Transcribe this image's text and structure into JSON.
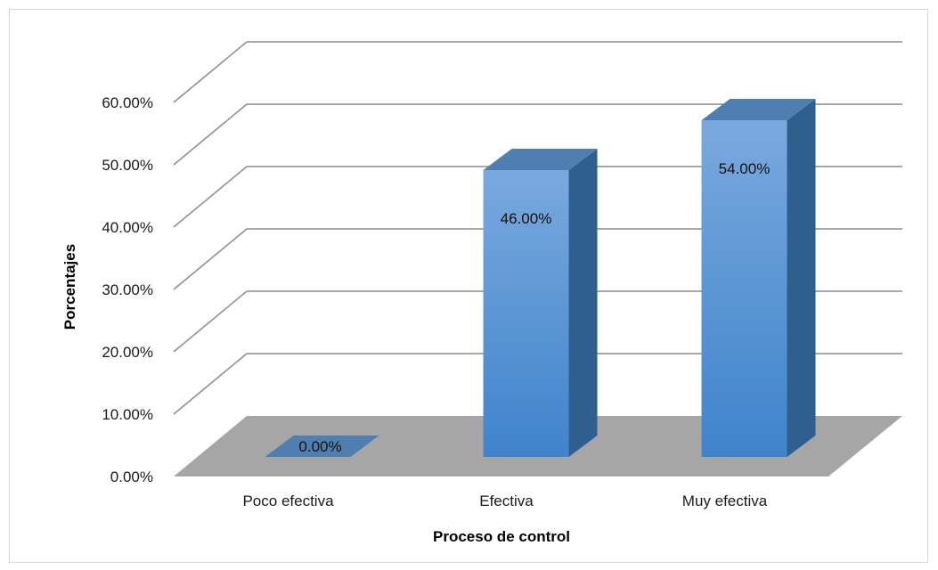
{
  "chart_data": {
    "type": "bar",
    "title": "",
    "xlabel": "Proceso de control",
    "ylabel": "Porcentajes",
    "categories": [
      "Poco efectiva",
      "Efectiva",
      "Muy efectiva"
    ],
    "values": [
      0.0,
      46.0,
      54.0
    ],
    "data_labels": [
      "0.00%",
      "46.00%",
      "54.00%"
    ],
    "ylim": [
      0,
      60
    ],
    "yticks": [
      0,
      10,
      20,
      30,
      40,
      50,
      60
    ],
    "ytick_labels": [
      "0.00%",
      "10.00%",
      "20.00%",
      "30.00%",
      "40.00%",
      "50.00%",
      "60.00%"
    ],
    "style": "3d-column",
    "grid": true,
    "legend": "none",
    "colors": {
      "bar_front_top": "#7aa9de",
      "bar_front_bottom": "#3f83cc",
      "bar_side": "#2f5f8f",
      "bar_top": "#4f7fb0",
      "floor": "#a6a6a6",
      "gridline": "#8c8c8c"
    }
  }
}
